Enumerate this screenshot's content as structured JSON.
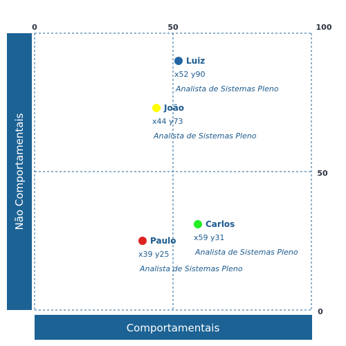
{
  "chart_data": {
    "type": "scatter",
    "xlabel": "Comportamentais",
    "ylabel": "Não Comportamentais",
    "xlim": [
      0,
      100
    ],
    "ylim": [
      0,
      100
    ],
    "x_ticks": [
      "0",
      "50",
      "100"
    ],
    "y_ticks": [
      "100",
      "50",
      "0"
    ],
    "grid": true,
    "grid_style": "dashed",
    "axis_color": "#1c6294",
    "points": [
      {
        "name": "Luiz",
        "x": 52,
        "y": 90,
        "coord_label": "x52 y90",
        "role": "Analista de Sistemas Pleno",
        "color": "#2166a3"
      },
      {
        "name": "João",
        "x": 44,
        "y": 73,
        "coord_label": "x44 y73",
        "role": "Analista de Sistemas Pleno",
        "color": "#ffff00"
      },
      {
        "name": "Carlos",
        "x": 59,
        "y": 31,
        "coord_label": "x59 y31",
        "role": "Analista de Sistemas Pleno",
        "color": "#22ee22"
      },
      {
        "name": "Paulo",
        "x": 39,
        "y": 25,
        "coord_label": "x39 y25",
        "role": "Analista de Sistemas Pleno",
        "color": "#dd2222"
      }
    ]
  }
}
